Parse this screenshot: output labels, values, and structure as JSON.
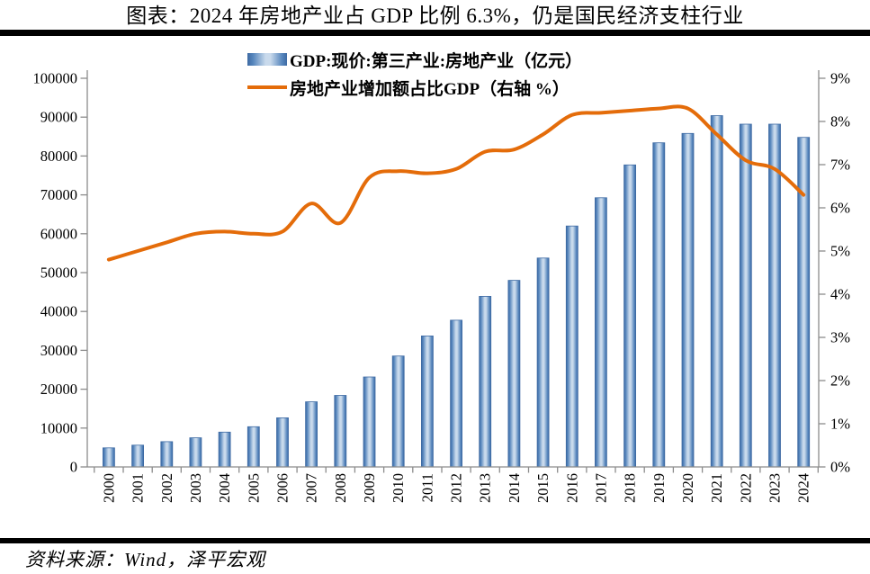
{
  "title": "图表：2024 年房地产业占 GDP 比例 6.3%，仍是国民经济支柱行业",
  "source": "资料来源：Wind，泽平宏观",
  "legend": {
    "bar_label": "GDP:现价:第三产业:房地产业（亿元）",
    "line_label": "房地产业增加额占比GDP（右轴 %）"
  },
  "colors": {
    "bar_edge": "#3E6AA3",
    "bar_mid": "#5585BC",
    "bar_light": "#C9DAEC",
    "line": "#E46C0A",
    "axis": "#8C8C8C",
    "text": "#000000",
    "rule": "#000000"
  },
  "chart_data": {
    "type": "bar",
    "subtype": "bar+line dual axis",
    "title": "图表：2024 年房地产业占 GDP 比例 6.3%，仍是国民经济支柱行业",
    "categories": [
      "2000",
      "2001",
      "2002",
      "2003",
      "2004",
      "2005",
      "2006",
      "2007",
      "2008",
      "2009",
      "2010",
      "2011",
      "2012",
      "2013",
      "2014",
      "2015",
      "2016",
      "2017",
      "2018",
      "2019",
      "2020",
      "2021",
      "2022",
      "2023",
      "2024"
    ],
    "series": [
      {
        "name": "GDP:现价:第三产业:房地产业（亿元）",
        "type": "bar",
        "axis": "left",
        "values": [
          4900,
          5600,
          6500,
          7500,
          8950,
          10350,
          12650,
          16750,
          18400,
          23150,
          28550,
          33700,
          37750,
          43900,
          48000,
          53750,
          62000,
          69250,
          77700,
          83400,
          85800,
          90400,
          88200,
          88200,
          84800
        ]
      },
      {
        "name": "房地产业增加额占比GDP（右轴 %）",
        "type": "line",
        "axis": "right",
        "values": [
          4.8,
          5.0,
          5.2,
          5.4,
          5.45,
          5.4,
          5.45,
          6.1,
          5.65,
          6.7,
          6.85,
          6.8,
          6.9,
          7.3,
          7.35,
          7.7,
          8.15,
          8.2,
          8.25,
          8.3,
          8.3,
          7.7,
          7.1,
          6.9,
          6.3
        ]
      }
    ],
    "left_axis": {
      "min": 0,
      "max": 100000,
      "step": 10000,
      "tick_labels": [
        "100000",
        "90000",
        "80000",
        "70000",
        "60000",
        "50000",
        "40000",
        "30000",
        "20000",
        "10000",
        "0"
      ]
    },
    "right_axis": {
      "min": 0,
      "max": 9,
      "step": 1,
      "tick_labels": [
        "9%",
        "8%",
        "7%",
        "6%",
        "5%",
        "4%",
        "3%",
        "2%",
        "1%",
        "0%"
      ]
    },
    "legend_position": "top-center",
    "grid": false
  }
}
